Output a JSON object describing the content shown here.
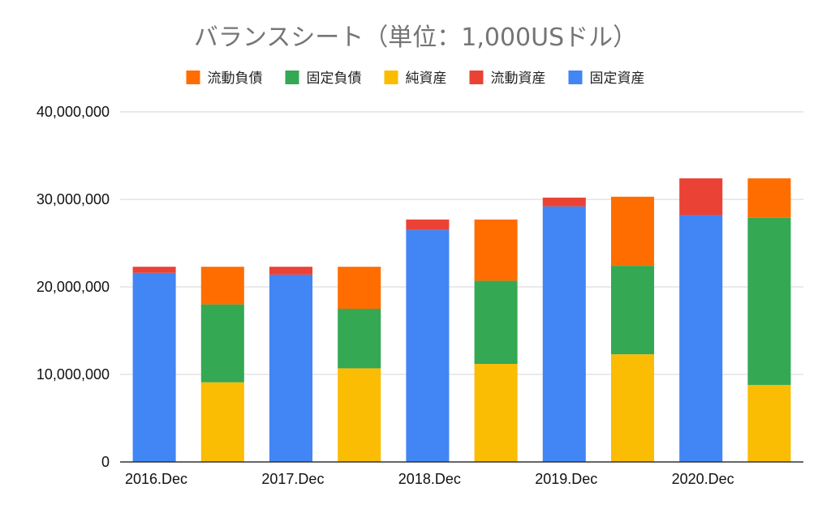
{
  "chart_data": {
    "type": "bar",
    "stacked": true,
    "title": "バランスシート（単位：1,000USドル）",
    "legend_position": "top",
    "grid": true,
    "ylim": [
      0,
      40000000
    ],
    "y_ticks": [
      "0",
      "10,000,000",
      "20,000,000",
      "30,000,000",
      "40,000,000"
    ],
    "x_tick_labels": [
      "2016.Dec",
      "2017.Dec",
      "2018.Dec",
      "2019.Dec",
      "2020.Dec"
    ],
    "categories": [
      "2016.Dec",
      "",
      "2017.Dec",
      "",
      "2018.Dec",
      "",
      "2019.Dec",
      "",
      "2020.Dec",
      ""
    ],
    "legend_order": [
      "流動負債",
      "固定負債",
      "純資産",
      "流動資産",
      "固定資産"
    ],
    "series": [
      {
        "name": "固定資産",
        "color": "#4285f4",
        "values": [
          21600000,
          0,
          21400000,
          0,
          26500000,
          0,
          29200000,
          0,
          28200000,
          0
        ]
      },
      {
        "name": "流動資産",
        "color": "#ea4335",
        "values": [
          700000,
          0,
          900000,
          0,
          1200000,
          0,
          1000000,
          0,
          4200000,
          0
        ]
      },
      {
        "name": "純資産",
        "color": "#fbbc04",
        "values": [
          0,
          9100000,
          0,
          10700000,
          0,
          11200000,
          0,
          12300000,
          0,
          8800000
        ]
      },
      {
        "name": "固定負債",
        "color": "#34a853",
        "values": [
          0,
          8900000,
          0,
          6800000,
          0,
          9500000,
          0,
          10100000,
          0,
          19100000
        ]
      },
      {
        "name": "流動負債",
        "color": "#ff6d01",
        "values": [
          0,
          4300000,
          0,
          4800000,
          0,
          7000000,
          0,
          7900000,
          0,
          4500000
        ]
      }
    ]
  }
}
